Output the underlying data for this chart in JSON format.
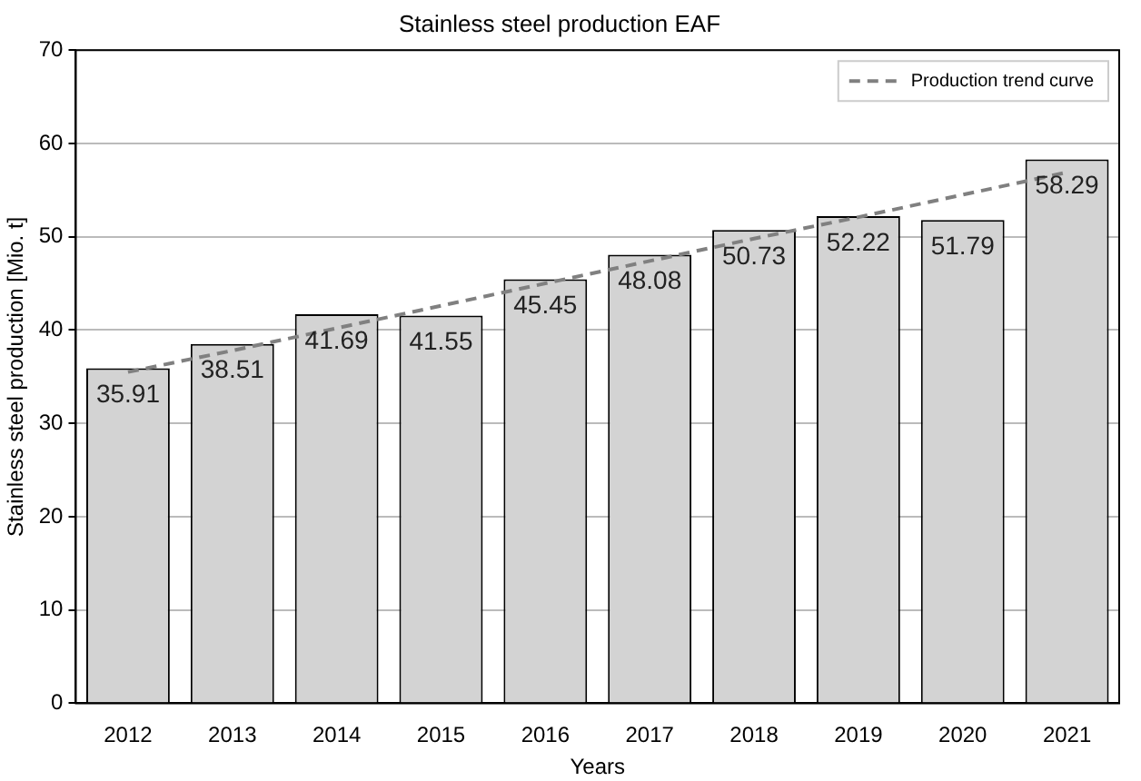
{
  "chart_data": {
    "type": "bar",
    "title": "Stainless steel production EAF",
    "xlabel": "Years",
    "ylabel": "Stainless steel production [Mio. t]",
    "categories": [
      "2012",
      "2013",
      "2014",
      "2015",
      "2016",
      "2017",
      "2018",
      "2019",
      "2020",
      "2021"
    ],
    "series": [
      {
        "color": "#d3d3d3",
        "values": [
          35.91,
          38.51,
          41.69,
          41.55,
          45.45,
          48.08,
          50.73,
          52.22,
          51.79,
          58.29
        ],
        "value_labels": [
          "35.91",
          "38.51",
          "41.69",
          "41.55",
          "45.45",
          "48.08",
          "50.73",
          "52.22",
          "51.79",
          "58.29"
        ]
      },
      {
        "type": "line",
        "name": "Production trend curve",
        "color": "#808080",
        "line_style": "dashed",
        "marker": "none",
        "values": [
          35.5,
          37.8,
          40.2,
          42.6,
          45.0,
          47.4,
          49.8,
          52.1,
          54.5,
          56.9
        ]
      }
    ],
    "ylim": [
      0,
      70
    ],
    "yticks": [
      0,
      10,
      20,
      30,
      40,
      50,
      60,
      70
    ],
    "grid": "y",
    "legend": "top right"
  }
}
